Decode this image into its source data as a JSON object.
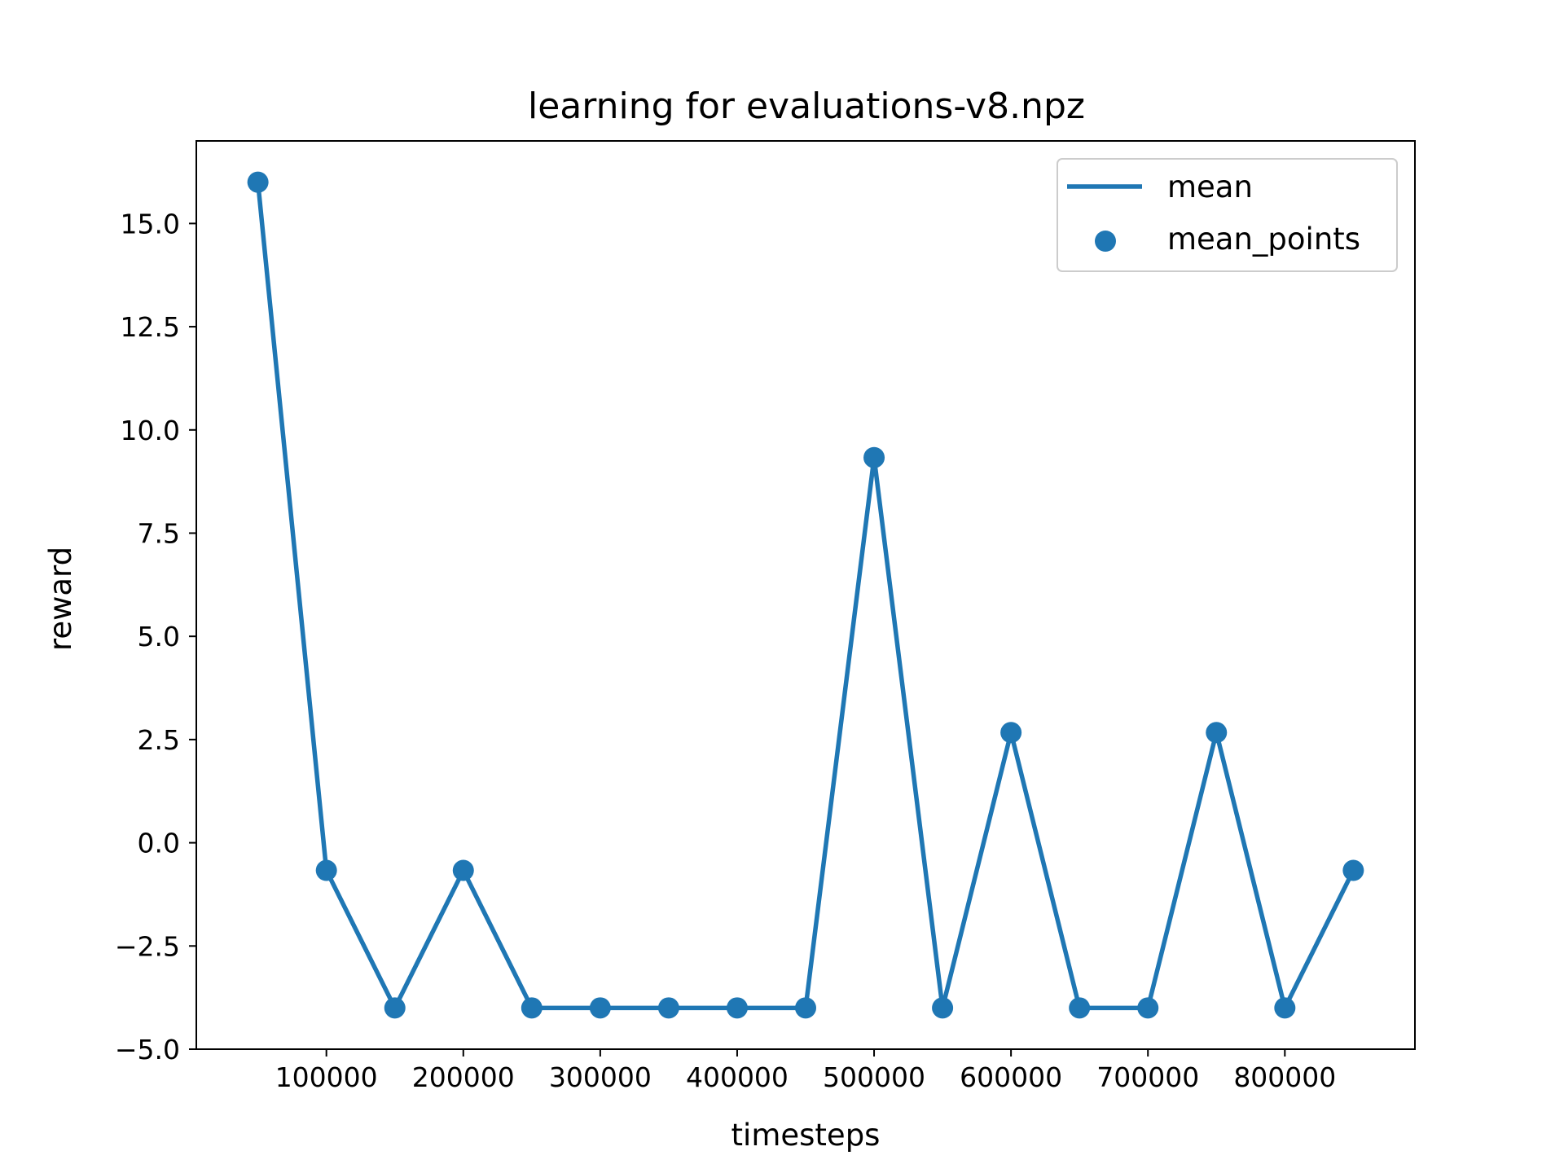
{
  "chart_data": {
    "type": "line",
    "title": "learning for evaluations-v8.npz",
    "xlabel": "timesteps",
    "ylabel": "reward",
    "xlim": [
      5000,
      895000
    ],
    "ylim": [
      -5.0,
      17.0
    ],
    "xticks": [
      100000,
      200000,
      300000,
      400000,
      500000,
      600000,
      700000,
      800000
    ],
    "xtick_labels": [
      "100000",
      "200000",
      "300000",
      "400000",
      "500000",
      "600000",
      "700000",
      "800000"
    ],
    "yticks": [
      -5.0,
      -2.5,
      0.0,
      2.5,
      5.0,
      7.5,
      10.0,
      12.5,
      15.0
    ],
    "ytick_labels": [
      "−5.0",
      "−2.5",
      "0.0",
      "2.5",
      "5.0",
      "7.5",
      "10.0",
      "12.5",
      "15.0"
    ],
    "grid": false,
    "legend_position": "top-right",
    "series": [
      {
        "name": "mean",
        "kind": "line",
        "color": "#1f77b4",
        "x": [
          50000,
          100000,
          150000,
          200000,
          250000,
          300000,
          350000,
          400000,
          450000,
          500000,
          550000,
          600000,
          650000,
          700000,
          750000,
          800000,
          850000
        ],
        "y": [
          16.0,
          -0.67,
          -4.0,
          -0.67,
          -4.0,
          -4.0,
          -4.0,
          -4.0,
          -4.0,
          9.33,
          -4.0,
          2.67,
          -4.0,
          -4.0,
          2.67,
          -4.0,
          -0.67
        ]
      },
      {
        "name": "mean_points",
        "kind": "scatter",
        "color": "#1f77b4",
        "x": [
          50000,
          100000,
          150000,
          200000,
          250000,
          300000,
          350000,
          400000,
          450000,
          500000,
          550000,
          600000,
          650000,
          700000,
          750000,
          800000,
          850000
        ],
        "y": [
          16.0,
          -0.67,
          -4.0,
          -0.67,
          -4.0,
          -4.0,
          -4.0,
          -4.0,
          -4.0,
          9.33,
          -4.0,
          2.67,
          -4.0,
          -4.0,
          2.67,
          -4.0,
          -0.67
        ]
      }
    ]
  }
}
